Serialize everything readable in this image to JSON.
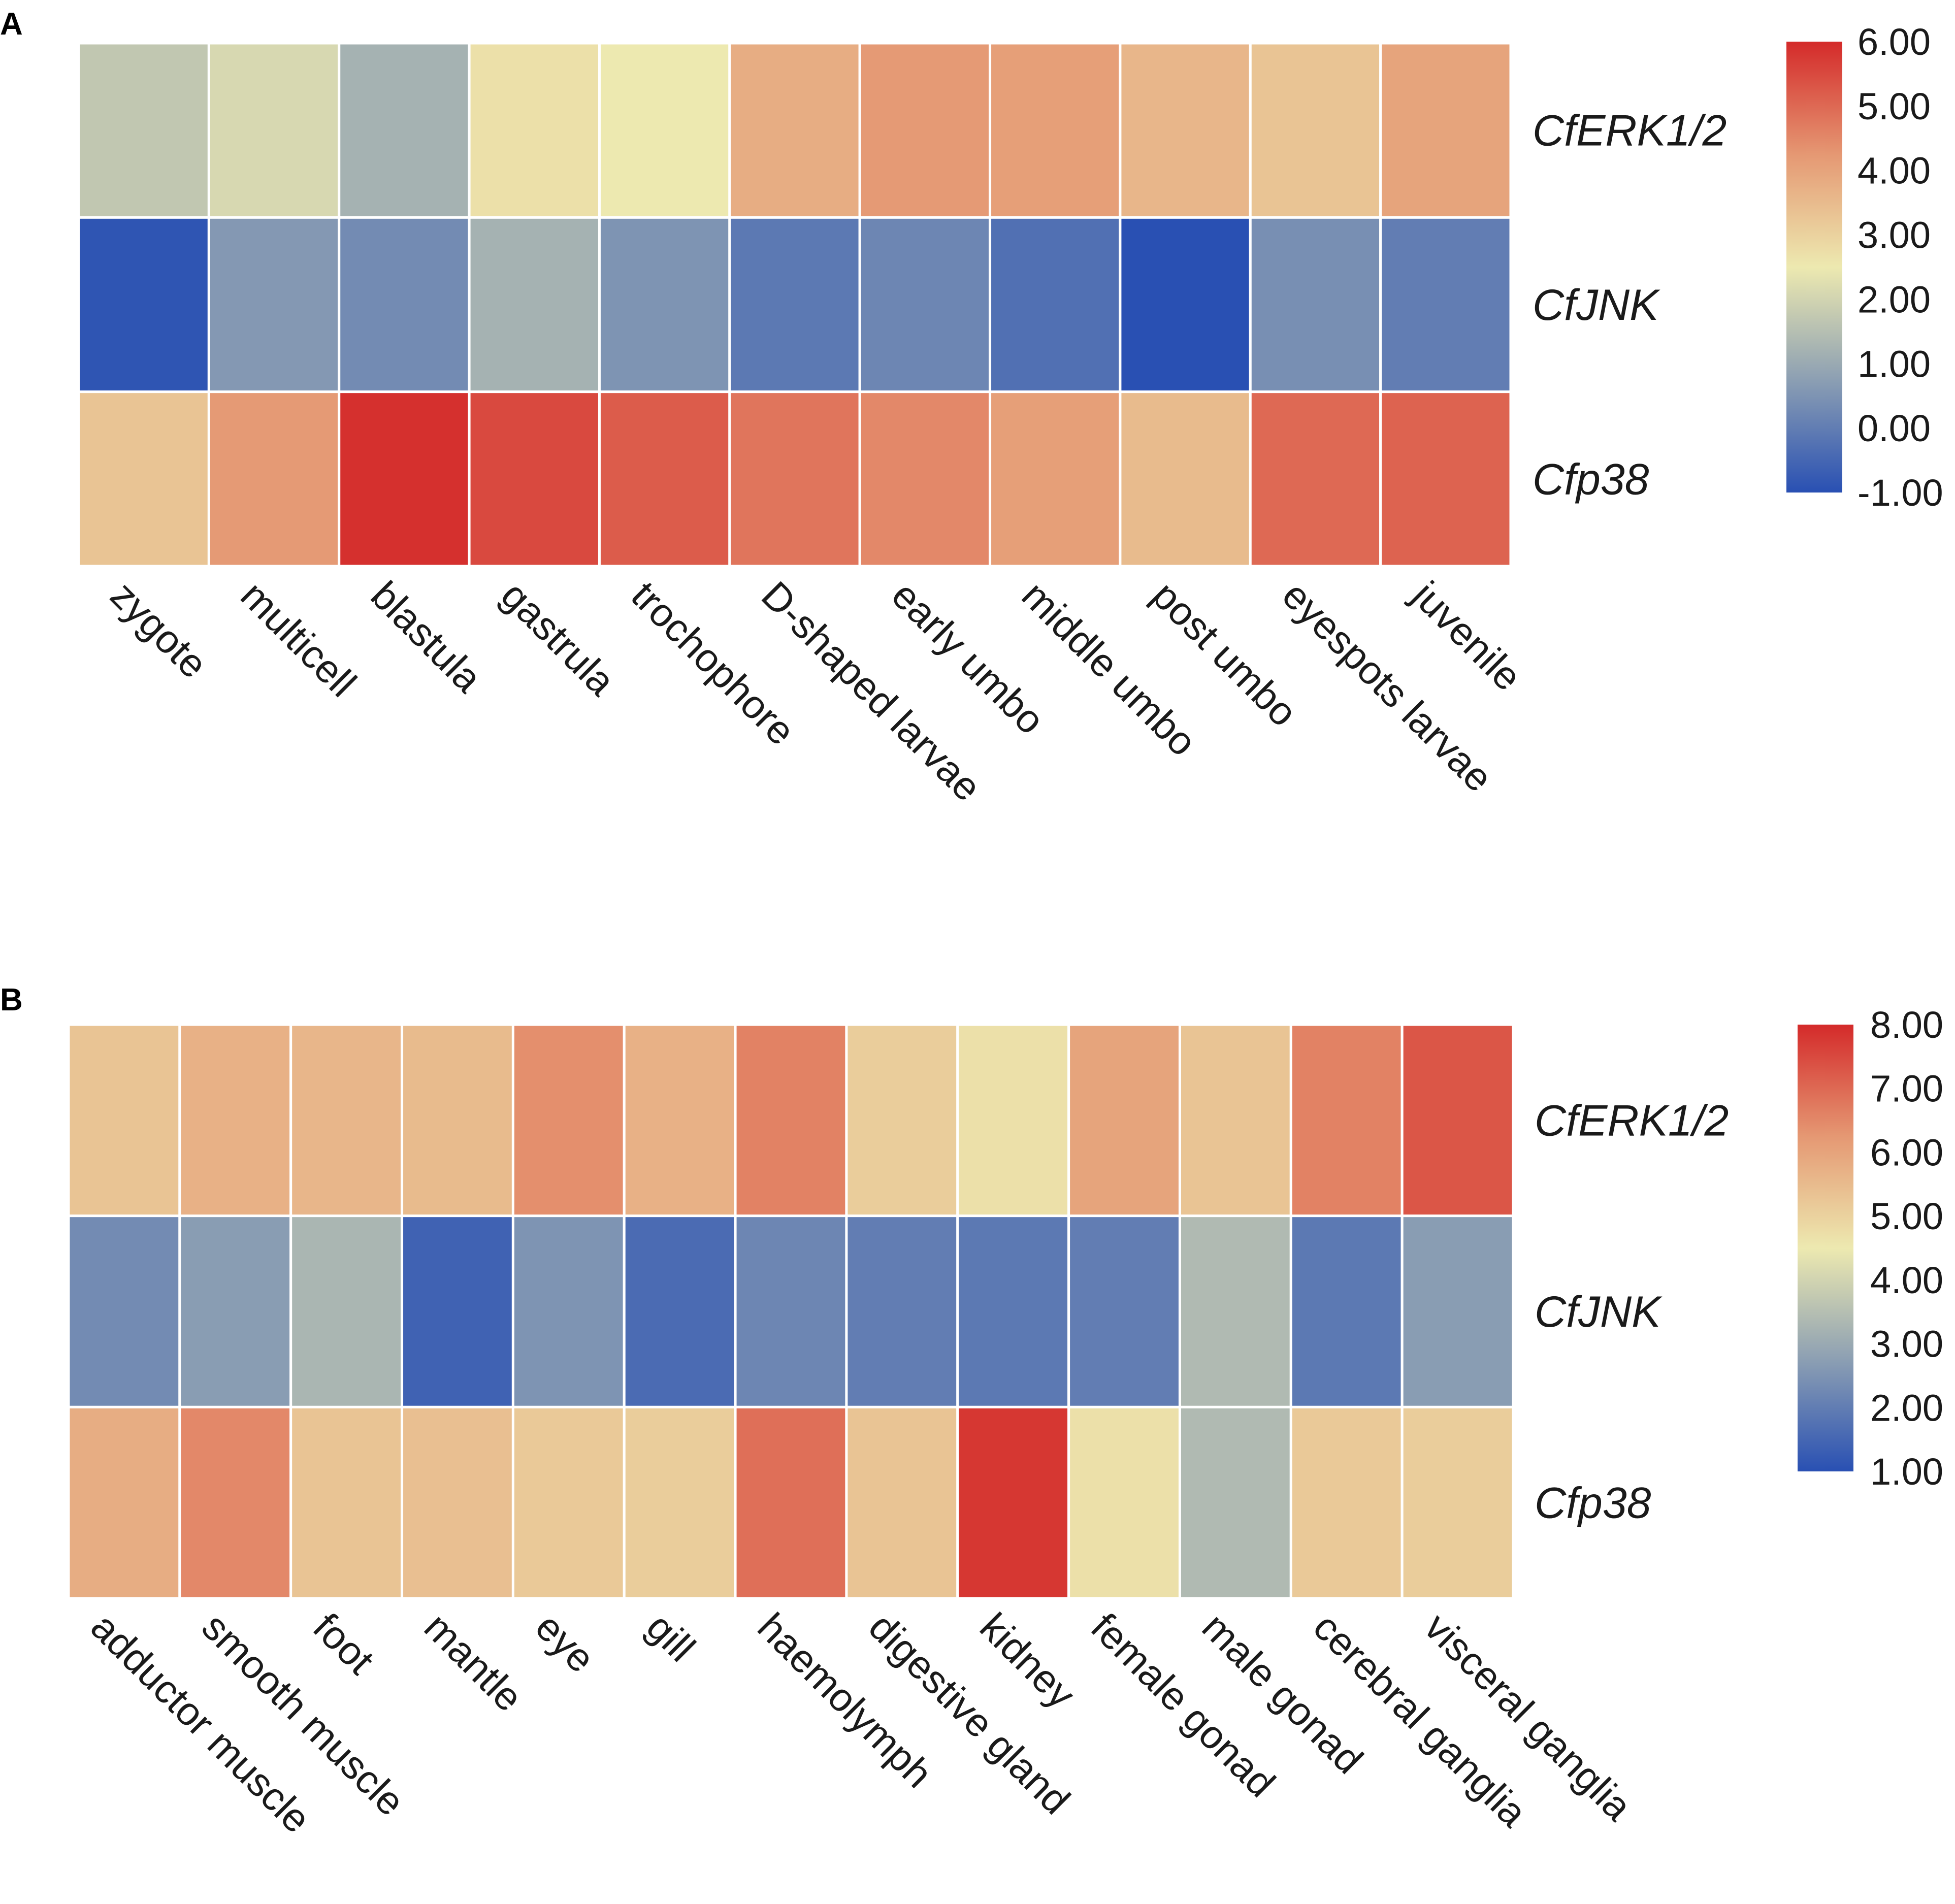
{
  "colors": {
    "scale": [
      "#2950b3",
      "#8c9fb3",
      "#ede9b0",
      "#e59873",
      "#d42a2a"
    ],
    "grid_line": "#ffffff",
    "text": "#1a1a1a"
  },
  "chart_data": [
    {
      "type": "heatmap",
      "panel_label": "A",
      "title": "",
      "rows": [
        "CfERK1/2",
        "CfJNK",
        "Cfp38"
      ],
      "columns": [
        "zygote",
        "multicell",
        "blastula",
        "gastrula",
        "trochophore",
        "D-shaped larvae",
        "early umbo",
        "middle umbo",
        "post umbo",
        "eyespots larvae",
        "juvenile"
      ],
      "values": [
        [
          1.7,
          2.1,
          1.2,
          2.7,
          2.5,
          3.8,
          4.2,
          4.1,
          3.6,
          3.3,
          4.0
        ],
        [
          -0.9,
          0.6,
          0.3,
          1.2,
          0.5,
          -0.1,
          0.2,
          -0.3,
          -1.0,
          0.4,
          0.0
        ],
        [
          3.3,
          4.2,
          5.9,
          5.5,
          5.2,
          4.8,
          4.5,
          4.1,
          3.5,
          5.0,
          5.1
        ]
      ],
      "color_range": [
        -1.0,
        6.0
      ],
      "legend_ticks": [
        "6.00",
        "5.00",
        "4.00",
        "3.00",
        "2.00",
        "1.00",
        "0.00",
        "-1.00"
      ]
    },
    {
      "type": "heatmap",
      "panel_label": "B",
      "title": "",
      "rows": [
        "CfERK1/2",
        "CfJNK",
        "Cfp38"
      ],
      "columns": [
        "adductor muscle",
        "smooth muscle",
        "foot",
        "mantle",
        "eye",
        "gill",
        "haemolymph",
        "digestive gland",
        "kidney",
        "female gonad",
        "male gonad",
        "cerebral ganglia",
        "visceral ganglia"
      ],
      "values": [
        [
          5.3,
          5.7,
          5.6,
          5.5,
          6.4,
          5.7,
          6.6,
          5.1,
          4.7,
          6.0,
          5.3,
          6.6,
          7.3
        ],
        [
          2.3,
          2.7,
          3.3,
          1.4,
          2.5,
          1.6,
          2.2,
          2.0,
          1.9,
          2.0,
          3.4,
          1.9,
          2.7
        ],
        [
          5.8,
          6.5,
          5.3,
          5.4,
          5.2,
          5.1,
          6.9,
          5.3,
          7.8,
          4.7,
          3.4,
          5.2,
          5.1
        ]
      ],
      "color_range": [
        1.0,
        8.0
      ],
      "legend_ticks": [
        "8.00",
        "7.00",
        "6.00",
        "5.00",
        "4.00",
        "3.00",
        "2.00",
        "1.00"
      ]
    }
  ]
}
